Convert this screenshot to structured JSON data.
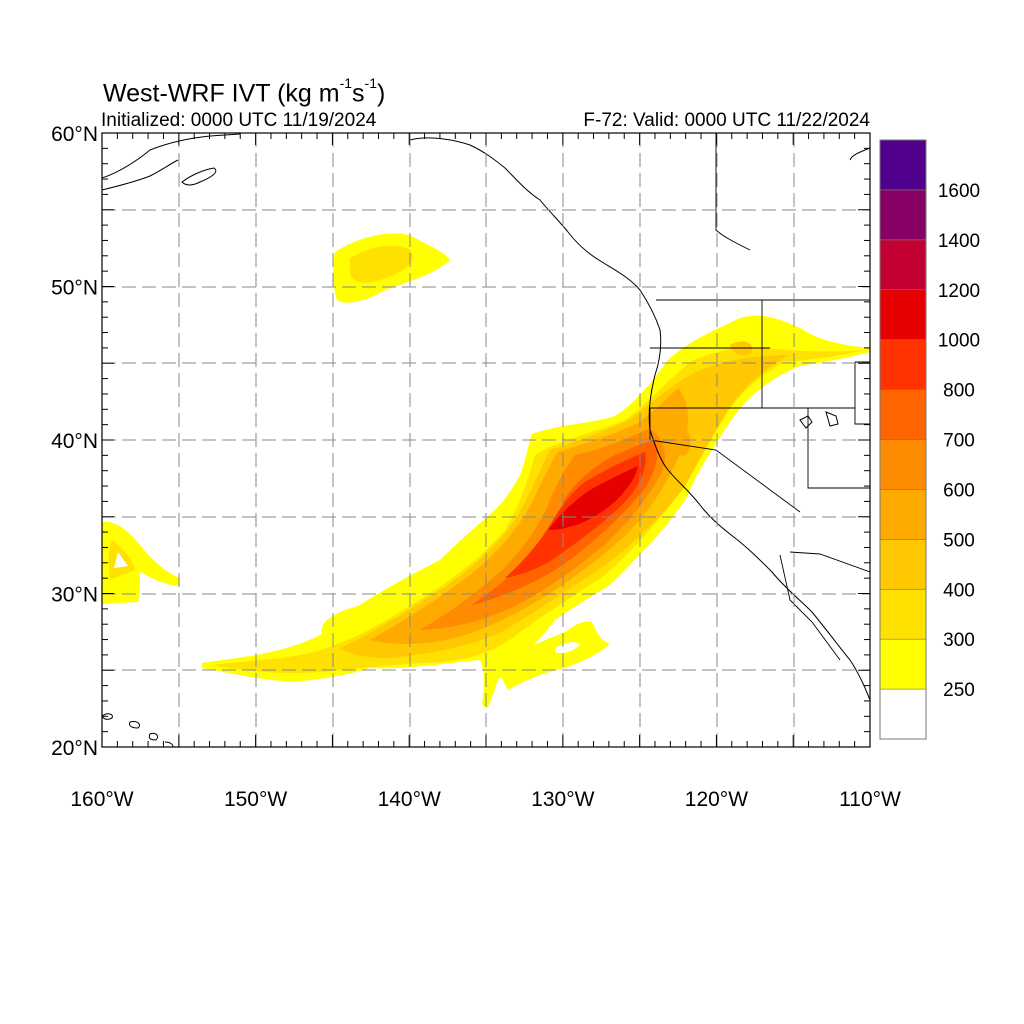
{
  "title": {
    "base": "West-WRF IVT (kg m",
    "exp1": "-1",
    "mid": "s",
    "exp2": "-1",
    "close": ")"
  },
  "subtitle_left": "Initialized: 0000 UTC 11/19/2024",
  "subtitle_right": "F-72: Valid: 0000 UTC 11/22/2024",
  "map": {
    "lon_range": [
      -160,
      -110
    ],
    "lat_range": [
      20,
      60
    ],
    "grid": "dashed",
    "lon_ticks": [
      "160°W",
      "150°W",
      "140°W",
      "130°W",
      "120°W",
      "110°W"
    ],
    "lat_ticks": [
      "20°N",
      "30°N",
      "40°N",
      "50°N",
      "60°N"
    ]
  },
  "colorbar": {
    "levels": [
      250,
      300,
      400,
      500,
      600,
      700,
      800,
      1000,
      1200,
      1400,
      1600
    ],
    "colors": [
      "#ffffff",
      "#ffff00",
      "#ffe100",
      "#ffc800",
      "#ffaa00",
      "#ff8c00",
      "#ff6400",
      "#ff3200",
      "#e60000",
      "#c30032",
      "#870064",
      "#50008c"
    ],
    "labels": [
      "250",
      "300",
      "400",
      "500",
      "600",
      "700",
      "800",
      "1000",
      "1200",
      "1400",
      "1600"
    ]
  }
}
